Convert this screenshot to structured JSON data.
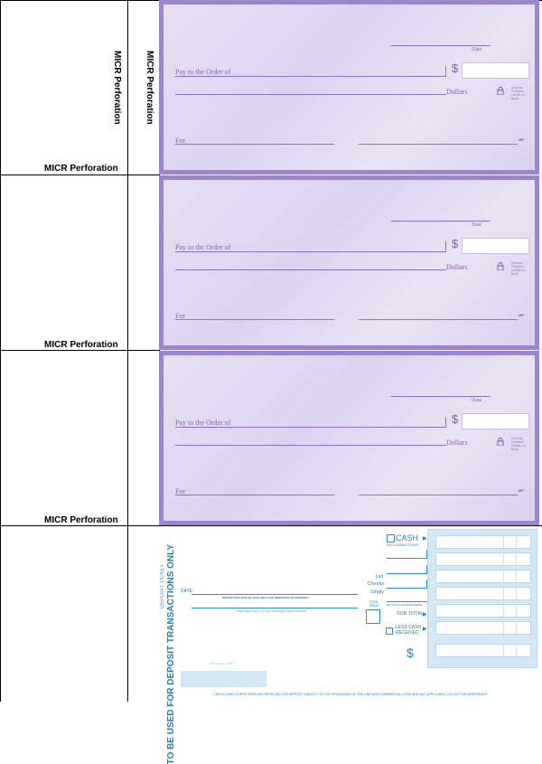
{
  "stubs": {
    "micr_label": "MICR Perforation",
    "rows": [
      {
        "label": "MICR Perforation"
      },
      {
        "label": "MICR Perforation"
      },
      {
        "label": "MICR Perforation"
      }
    ]
  },
  "check": {
    "date_label": "Date",
    "pay_label": "Pay to the Order of",
    "dollar_sign": "$",
    "dollars_label": "Dollars",
    "for_label": "For",
    "security_text": "Security Features Details on Back",
    "mp_text": "MP"
  },
  "deposit": {
    "deposit_ticket": "DEPOSIT TICKET",
    "use_only": "TO BE USED FOR DEPOSIT TRANSACTIONS ONLY",
    "date_label": "DATE",
    "deposit_note": "DEPOSIT MAY NOT BE AVAILABLE FOR IMMEDIATE WITHDRAWAL",
    "sign_note": "SIGN HERE ONLY IF CASH RECEIVED FROM DEPOSIT",
    "cash": "CASH",
    "including_coins": "INCLUDING COINS",
    "list_checks": [
      "List",
      "Checks",
      "Singly"
    ],
    "total_items": "TOTAL ITEMS",
    "or_total": "OR TOTAL FROM REVERSE",
    "sub_total": "SUB TOTAL",
    "less_cash": [
      "LESS CASH",
      "RECEIVED"
    ],
    "dollar_sign": "$",
    "footer": "CHECKS AND OTHER ITEMS ARE RECEIVED FOR DEPOSIT SUBJECT TO THE PROVISIONS OF THE UNIFORM COMMERCIAL CODE AND ANY APPLICABLE COLLECTION AGREEMENT",
    "account_placeholder": "PLEASE BE SURE"
  }
}
